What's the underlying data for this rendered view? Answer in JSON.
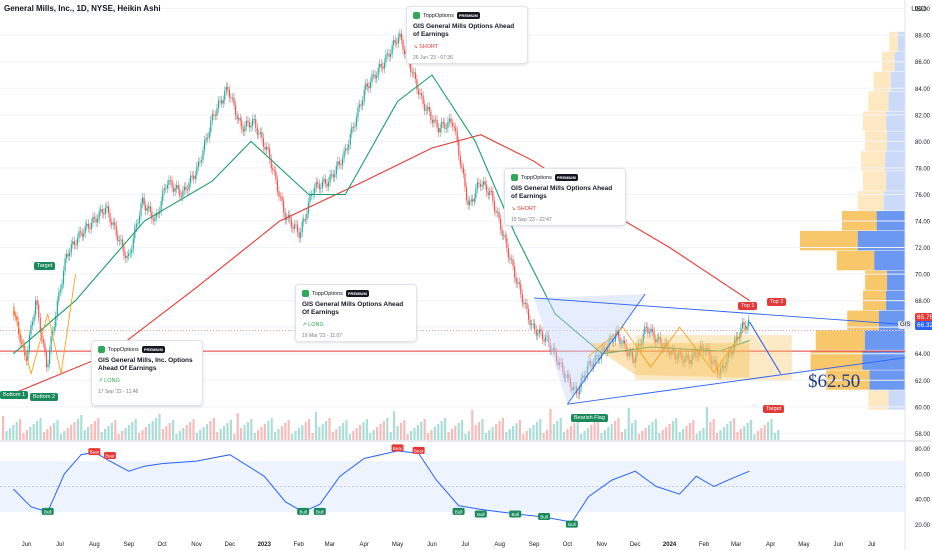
{
  "header": {
    "title": "General Mills, Inc., 1D, NYSE, Heikin Ashi",
    "currency": "USD"
  },
  "chart_data": {
    "type": "candlestick",
    "chart_style": "Heikin Ashi",
    "price_axis": {
      "ticks": [
        58,
        60,
        62,
        64,
        66,
        68,
        70,
        72,
        74,
        76,
        78,
        80,
        82,
        84,
        86,
        88,
        90
      ],
      "ylim": [
        57.5,
        90.5
      ],
      "side": "right"
    },
    "time_axis": {
      "ticks": [
        "Jun",
        "Jul",
        "Aug",
        "Sep",
        "Oct",
        "Nov",
        "Dec",
        "2023",
        "Feb",
        "Mar",
        "Apr",
        "May",
        "Jun",
        "Jul",
        "Aug",
        "Sep",
        "Oct",
        "Nov",
        "Dec",
        "2024",
        "Feb",
        "Mar",
        "Apr",
        "May",
        "Jun",
        "Jul"
      ]
    },
    "price_path": [
      [
        "2022-05-20",
        67.5
      ],
      [
        "2022-06-01",
        63.5
      ],
      [
        "2022-06-10",
        68.0
      ],
      [
        "2022-06-20",
        63.0
      ],
      [
        "2022-06-30",
        68.0
      ],
      [
        "2022-07-08",
        71.5
      ],
      [
        "2022-07-20",
        73.0
      ],
      [
        "2022-08-01",
        74.0
      ],
      [
        "2022-08-12",
        75.0
      ],
      [
        "2022-08-22",
        73.0
      ],
      [
        "2022-09-01",
        71.0
      ],
      [
        "2022-09-14",
        75.5
      ],
      [
        "2022-09-26",
        74.0
      ],
      [
        "2022-10-06",
        77.0
      ],
      [
        "2022-10-20",
        76.0
      ],
      [
        "2022-11-03",
        78.0
      ],
      [
        "2022-11-17",
        82.0
      ],
      [
        "2022-11-30",
        84.0
      ],
      [
        "2022-12-12",
        81.0
      ],
      [
        "2022-12-23",
        81.5
      ],
      [
        "2023-01-06",
        79.0
      ],
      [
        "2023-01-20",
        74.5
      ],
      [
        "2023-02-03",
        73.0
      ],
      [
        "2023-02-15",
        76.5
      ],
      [
        "2023-03-01",
        77.0
      ],
      [
        "2023-03-15",
        79.0
      ],
      [
        "2023-04-03",
        84.0
      ],
      [
        "2023-04-20",
        86.0
      ],
      [
        "2023-05-03",
        88.0
      ],
      [
        "2023-05-12",
        86.0
      ],
      [
        "2023-05-24",
        83.0
      ],
      [
        "2023-06-07",
        81.0
      ],
      [
        "2023-06-21",
        81.5
      ],
      [
        "2023-07-05",
        75.0
      ],
      [
        "2023-07-15",
        77.0
      ],
      [
        "2023-07-25",
        76.0
      ],
      [
        "2023-08-03",
        73.5
      ],
      [
        "2023-08-17",
        69.5
      ],
      [
        "2023-08-31",
        66.0
      ],
      [
        "2023-09-14",
        65.0
      ],
      [
        "2023-09-29",
        62.5
      ],
      [
        "2023-10-10",
        61.0
      ],
      [
        "2023-10-20",
        63.0
      ],
      [
        "2023-11-01",
        64.0
      ],
      [
        "2023-11-15",
        65.5
      ],
      [
        "2023-11-30",
        63.5
      ],
      [
        "2023-12-12",
        66.0
      ],
      [
        "2023-12-22",
        65.0
      ],
      [
        "2024-01-05",
        64.0
      ],
      [
        "2024-01-19",
        63.5
      ],
      [
        "2024-02-02",
        64.5
      ],
      [
        "2024-02-16",
        62.5
      ],
      [
        "2024-02-28",
        64.5
      ],
      [
        "2024-03-07",
        66.0
      ],
      [
        "2024-03-13",
        66.3
      ]
    ],
    "moving_average_fast": [
      [
        "2022-05-20",
        64.0
      ],
      [
        "2022-07-15",
        68.0
      ],
      [
        "2022-09-15",
        74.0
      ],
      [
        "2022-11-15",
        77.0
      ],
      [
        "2022-12-20",
        80.0
      ],
      [
        "2023-02-10",
        76.0
      ],
      [
        "2023-03-15",
        76.0
      ],
      [
        "2023-05-01",
        83.0
      ],
      [
        "2023-06-01",
        85.0
      ],
      [
        "2023-07-10",
        80.0
      ],
      [
        "2023-08-15",
        73.0
      ],
      [
        "2023-09-20",
        67.0
      ],
      [
        "2023-11-01",
        64.0
      ],
      [
        "2023-12-15",
        64.5
      ],
      [
        "2024-02-15",
        64.2
      ],
      [
        "2024-03-13",
        65.0
      ]
    ],
    "moving_average_slow": [
      [
        "2022-05-20",
        61.0
      ],
      [
        "2022-08-15",
        64.0
      ],
      [
        "2022-11-01",
        69.0
      ],
      [
        "2023-01-15",
        74.0
      ],
      [
        "2023-04-01",
        77.0
      ],
      [
        "2023-06-01",
        79.5
      ],
      [
        "2023-07-15",
        80.5
      ],
      [
        "2023-09-01",
        78.5
      ],
      [
        "2023-11-01",
        75.0
      ],
      [
        "2024-01-01",
        72.0
      ],
      [
        "2024-03-13",
        68.0
      ]
    ],
    "price_labels": [
      {
        "text": "65.76",
        "value": 65.76,
        "color": "#e53935"
      },
      {
        "text": "66.32",
        "value": 66.32,
        "color": "#2962ff",
        "prefix": "GIS"
      }
    ],
    "annotations": {
      "target_text": "$62.50",
      "labels": [
        "Target",
        "Bottom 1",
        "Bottom 2",
        "Bearish Flag",
        "Top 1",
        "Top 2",
        "Target"
      ]
    },
    "rsi": {
      "ticks": [
        20,
        40,
        60,
        80
      ],
      "ylim": [
        15,
        85
      ],
      "band": [
        30,
        70
      ],
      "labels": [
        "Bull",
        "Bear",
        "Bear",
        "Bull",
        "Bull",
        "Bull",
        "Bear",
        "Bear",
        "Bull",
        "Bull",
        "Bull",
        "Bull"
      ],
      "path": [
        [
          "2022-05-20",
          48
        ],
        [
          "2022-06-05",
          34
        ],
        [
          "2022-06-20",
          30
        ],
        [
          "2022-07-05",
          60
        ],
        [
          "2022-07-20",
          75
        ],
        [
          "2022-08-01",
          77
        ],
        [
          "2022-08-15",
          70
        ],
        [
          "2022-09-01",
          62
        ],
        [
          "2022-09-15",
          66
        ],
        [
          "2022-10-01",
          68
        ],
        [
          "2022-11-01",
          70
        ],
        [
          "2022-12-01",
          75
        ],
        [
          "2023-01-01",
          58
        ],
        [
          "2023-01-20",
          38
        ],
        [
          "2023-02-05",
          30
        ],
        [
          "2023-02-20",
          36
        ],
        [
          "2023-03-10",
          58
        ],
        [
          "2023-04-01",
          72
        ],
        [
          "2023-05-01",
          78
        ],
        [
          "2023-05-20",
          76
        ],
        [
          "2023-06-05",
          55
        ],
        [
          "2023-06-25",
          35
        ],
        [
          "2023-07-15",
          32
        ],
        [
          "2023-08-01",
          30
        ],
        [
          "2023-08-20",
          28
        ],
        [
          "2023-09-10",
          26
        ],
        [
          "2023-10-05",
          22
        ],
        [
          "2023-10-20",
          42
        ],
        [
          "2023-11-10",
          55
        ],
        [
          "2023-12-01",
          62
        ],
        [
          "2023-12-20",
          50
        ],
        [
          "2024-01-10",
          44
        ],
        [
          "2024-01-25",
          58
        ],
        [
          "2024-02-10",
          50
        ],
        [
          "2024-02-25",
          56
        ],
        [
          "2024-03-13",
          62
        ]
      ]
    },
    "volume_profile_bins": [
      {
        "price": 87.5,
        "value": 0.15
      },
      {
        "price": 86.0,
        "value": 0.22
      },
      {
        "price": 84.5,
        "value": 0.3
      },
      {
        "price": 83.0,
        "value": 0.35
      },
      {
        "price": 81.5,
        "value": 0.4
      },
      {
        "price": 80.0,
        "value": 0.38
      },
      {
        "price": 78.5,
        "value": 0.42
      },
      {
        "price": 77.0,
        "value": 0.4
      },
      {
        "price": 75.5,
        "value": 0.45
      },
      {
        "price": 74.0,
        "value": 0.6
      },
      {
        "price": 72.5,
        "value": 1.0
      },
      {
        "price": 71.0,
        "value": 0.65
      },
      {
        "price": 69.5,
        "value": 0.38
      },
      {
        "price": 68.0,
        "value": 0.4
      },
      {
        "price": 66.5,
        "value": 0.55
      },
      {
        "price": 65.0,
        "value": 0.85
      },
      {
        "price": 63.5,
        "value": 0.9
      },
      {
        "price": 62.0,
        "value": 0.75
      },
      {
        "price": 60.5,
        "value": 0.35
      }
    ]
  },
  "ideas": [
    {
      "brand": "ToppOptions",
      "badge": "PREMIUM",
      "title": "GIS General Mills Options Ahead of Earnings",
      "direction": "SHORT",
      "date": "26 Jun '23 - 07:36"
    },
    {
      "brand": "ToppOptions",
      "badge": "PREMIUM",
      "title": "GIS General Mills Options Ahead of Earnings",
      "direction": "SHORT",
      "date": "15 Sep '23 - 22:47"
    },
    {
      "brand": "ToppOptions",
      "badge": "PREMIUM",
      "title": "GIS General Mills Options Ahead Of Earnings",
      "direction": "LONG",
      "date": "19 Mar '23 - 11:07"
    },
    {
      "brand": "ToppOptions",
      "badge": "PREMIUM",
      "title": "GIS General Mills, Inc. Options Ahead Of Earnings",
      "direction": "LONG",
      "date": "17 Sep '22 - 11:46"
    }
  ],
  "colors": {
    "up": "#26a69a",
    "down": "#ef5350",
    "ma_fast": "#1b9e6a",
    "ma_slow": "#e53935",
    "rsi": "#2962ff",
    "trend": "#2962ff",
    "fib": "#ff9800"
  }
}
